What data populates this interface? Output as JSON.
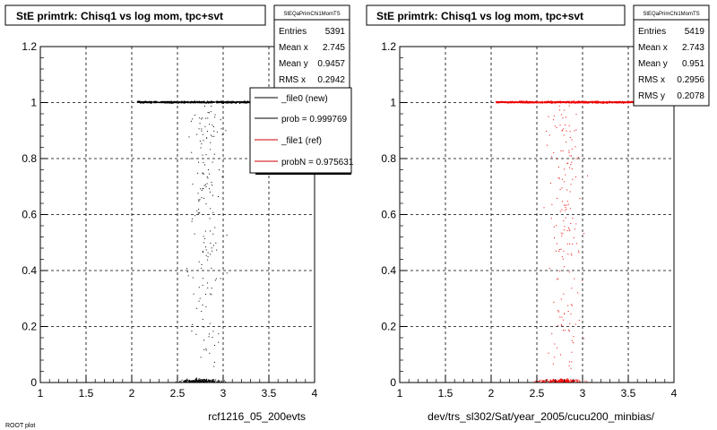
{
  "footer_text": "ROOT plot",
  "panels": [
    {
      "title": "StE primtrk: Chisq1 vs log mom, tpc+svt",
      "stats": {
        "name": "StEQaPrimChi1MomTS",
        "rows": [
          {
            "label": "Entries",
            "value": "5391"
          },
          {
            "label": "Mean x",
            "value": "2.745"
          },
          {
            "label": "Mean y",
            "value": "0.9457"
          },
          {
            "label": "RMS x",
            "value": "0.2942"
          }
        ]
      },
      "legend": [
        {
          "label": "_file0 (new)",
          "color": "#000000"
        },
        {
          "label": "prob = 0.999769",
          "color": "#000000"
        },
        {
          "label": "_file1 (ref)",
          "color": "#cc0000"
        },
        {
          "label": "probN = 0.975631",
          "color": "#cc0000"
        }
      ],
      "xtitle": "rcf1216_05_200evts"
    },
    {
      "title": "StE primtrk: Chisq1 vs log mom, tpc+svt",
      "stats": {
        "name": "StEQaPrimChi1MomTS",
        "rows": [
          {
            "label": "Entries",
            "value": "5419"
          },
          {
            "label": "Mean x",
            "value": "2.743"
          },
          {
            "label": "Mean y",
            "value": "0.951"
          },
          {
            "label": "RMS x",
            "value": "0.2956"
          },
          {
            "label": "RMS y",
            "value": "0.2078"
          }
        ]
      },
      "xtitle": "dev/trs_sl302/Sat/year_2005/cucu200_minbias/"
    }
  ],
  "chart_data": [
    {
      "type": "scatter",
      "title": "StE primtrk: Chisq1 vs log mom, tpc+svt",
      "xlabel": "rcf1216_05_200evts",
      "ylabel": "",
      "xlim": [
        1,
        4
      ],
      "ylim": [
        0,
        1.2
      ],
      "xticks": [
        "1",
        "1.5",
        "2",
        "2.5",
        "3",
        "3.5",
        "4"
      ],
      "yticks": [
        "0",
        "0.2",
        "0.4",
        "0.6",
        "0.8",
        "1",
        "1.2"
      ],
      "grid": true,
      "color": "#000000",
      "series": [
        {
          "band": "y≈1",
          "x_range": [
            2.05,
            3.75
          ],
          "y": 1.0
        },
        {
          "band": "y≈0",
          "x_range": [
            2.1,
            3.6
          ],
          "y": 0.01
        },
        {
          "band": "sparse",
          "x_range": [
            2.1,
            3.8
          ],
          "y_range": [
            0.02,
            0.99
          ]
        }
      ],
      "stats": {
        "entries": 5391,
        "mean_x": 2.745,
        "mean_y": 0.9457,
        "rms_x": 0.2942
      }
    },
    {
      "type": "scatter",
      "title": "StE primtrk: Chisq1 vs log mom, tpc+svt",
      "xlabel": "dev/trs_sl302/Sat/year_2005/cucu200_minbias/",
      "ylabel": "",
      "xlim": [
        1,
        4
      ],
      "ylim": [
        0,
        1.2
      ],
      "xticks": [
        "1",
        "1.5",
        "2",
        "2.5",
        "3",
        "3.5",
        "4"
      ],
      "yticks": [
        "0",
        "0.2",
        "0.4",
        "0.6",
        "0.8",
        "1",
        "1.2"
      ],
      "grid": true,
      "color": "#ee0000",
      "series": [
        {
          "band": "y≈1",
          "x_range": [
            2.05,
            3.75
          ],
          "y": 1.0
        },
        {
          "band": "y≈0",
          "x_range": [
            2.1,
            3.7
          ],
          "y": 0.01
        },
        {
          "band": "sparse",
          "x_range": [
            2.1,
            3.8
          ],
          "y_range": [
            0.02,
            0.99
          ]
        }
      ],
      "stats": {
        "entries": 5419,
        "mean_x": 2.743,
        "mean_y": 0.951,
        "rms_x": 0.2956,
        "rms_y": 0.2078
      }
    }
  ]
}
